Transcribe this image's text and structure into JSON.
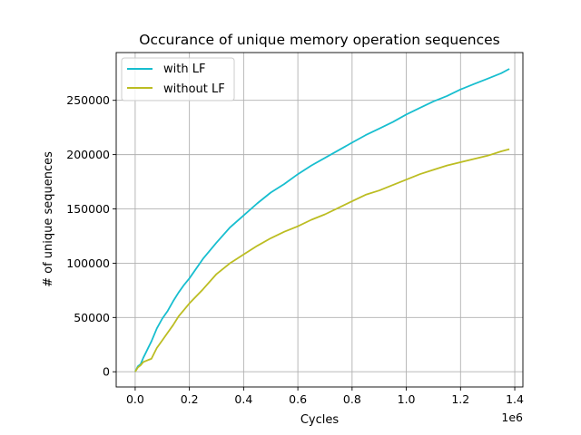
{
  "chart_data": {
    "type": "line",
    "title": "Occurance of unique memory operation sequences",
    "xlabel": "Cycles",
    "ylabel": "# of unique sequences",
    "x_offset_label": "1e6",
    "xlim": [
      -0.07,
      1.43
    ],
    "ylim": [
      -14000,
      294000
    ],
    "x_ticks": [
      0.0,
      0.2,
      0.4,
      0.6,
      0.8,
      1.0,
      1.2,
      1.4
    ],
    "x_tick_labels": [
      "0.0",
      "0.2",
      "0.4",
      "0.6",
      "0.8",
      "1.0",
      "1.2",
      "1.4"
    ],
    "y_ticks": [
      0,
      50000,
      100000,
      150000,
      200000,
      250000
    ],
    "y_tick_labels": [
      "0",
      "50000",
      "100000",
      "150000",
      "200000",
      "250000"
    ],
    "grid": true,
    "legend_position": "top-left",
    "series": [
      {
        "name": "with LF",
        "color": "#17becf",
        "x": [
          0.0,
          0.01,
          0.02,
          0.03,
          0.04,
          0.05,
          0.06,
          0.08,
          0.1,
          0.12,
          0.14,
          0.16,
          0.18,
          0.2,
          0.25,
          0.3,
          0.35,
          0.4,
          0.45,
          0.5,
          0.55,
          0.6,
          0.65,
          0.7,
          0.75,
          0.8,
          0.85,
          0.9,
          0.95,
          1.0,
          1.05,
          1.1,
          1.15,
          1.2,
          1.25,
          1.3,
          1.35,
          1.38
        ],
        "y": [
          0,
          5000,
          7000,
          13000,
          18000,
          23000,
          28000,
          40000,
          49000,
          56000,
          65000,
          73000,
          80000,
          86000,
          104000,
          119000,
          133000,
          144000,
          155000,
          165000,
          173000,
          182000,
          190000,
          197000,
          204000,
          211000,
          218000,
          224000,
          230000,
          237000,
          243000,
          249000,
          254000,
          260000,
          265000,
          270000,
          275000,
          279000
        ]
      },
      {
        "name": "without LF",
        "color": "#bcbd22",
        "x": [
          0.0,
          0.01,
          0.02,
          0.03,
          0.04,
          0.05,
          0.06,
          0.08,
          0.1,
          0.12,
          0.14,
          0.16,
          0.18,
          0.2,
          0.25,
          0.3,
          0.35,
          0.4,
          0.45,
          0.5,
          0.55,
          0.6,
          0.65,
          0.7,
          0.75,
          0.8,
          0.85,
          0.9,
          0.95,
          1.0,
          1.05,
          1.1,
          1.15,
          1.2,
          1.25,
          1.3,
          1.35,
          1.38
        ],
        "y": [
          0,
          4000,
          6000,
          9000,
          10000,
          11000,
          12000,
          22000,
          29000,
          36000,
          43000,
          51000,
          57000,
          63000,
          76000,
          90000,
          100000,
          108000,
          116000,
          123000,
          129000,
          134000,
          140000,
          145000,
          151000,
          157000,
          163000,
          167000,
          172000,
          177000,
          182000,
          186000,
          190000,
          193000,
          196000,
          199000,
          203000,
          205000
        ]
      }
    ]
  }
}
